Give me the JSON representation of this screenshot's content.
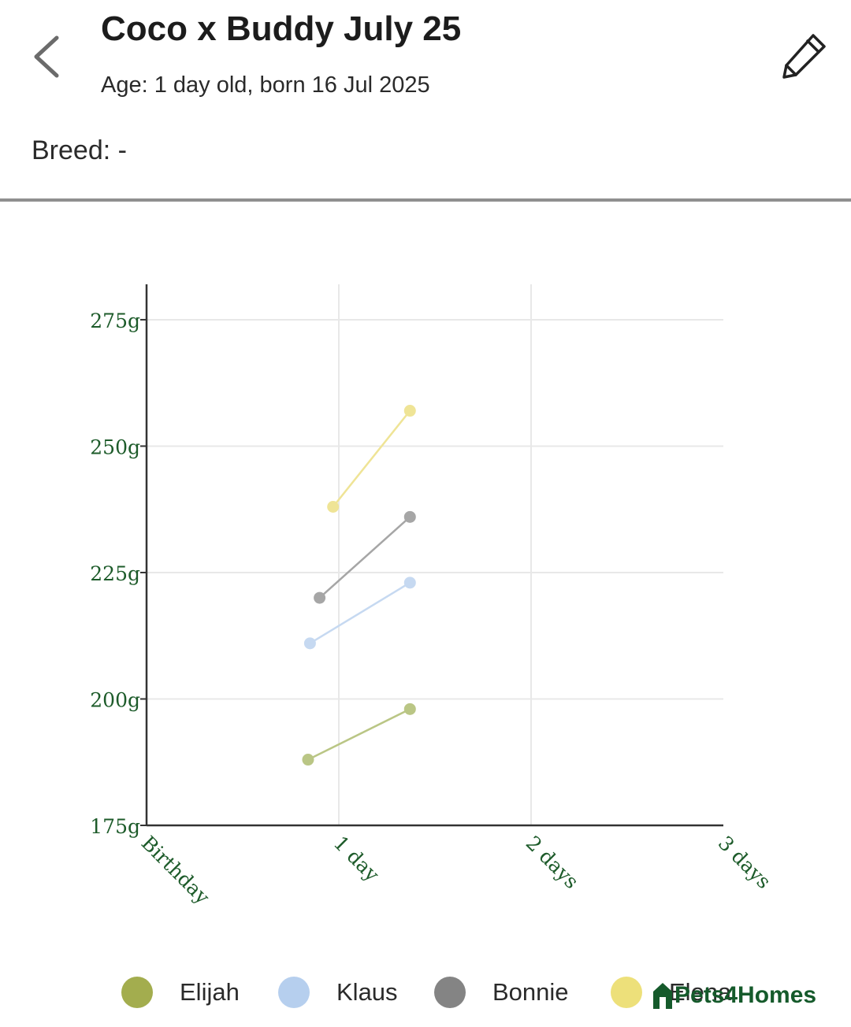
{
  "header": {
    "title": "Coco x Buddy July 25",
    "age_text": "Age: 1 day old, born 16 Jul 2025",
    "back_icon": "chevron-left-icon",
    "edit_icon": "pencil-icon"
  },
  "details": {
    "breed_text": "Breed: -"
  },
  "chart_data": {
    "type": "line",
    "title": "",
    "xlabel": "",
    "ylabel": "",
    "x_tick_labels": [
      "Birthday",
      "1 day",
      "2 days",
      "3 days"
    ],
    "x_ticks": [
      0,
      1,
      2,
      3
    ],
    "y_tick_labels": [
      "175g",
      "200g",
      "225g",
      "250g",
      "275g"
    ],
    "y_ticks": [
      175,
      200,
      225,
      250,
      275
    ],
    "xlim": [
      0,
      3
    ],
    "ylim": [
      175,
      282
    ],
    "grid": true,
    "legend_position": "bottom",
    "series": [
      {
        "name": "Elijah",
        "color": "#a3ad4e",
        "line_color": "#bac685",
        "x": [
          0.84,
          1.37
        ],
        "y": [
          188,
          198
        ]
      },
      {
        "name": "Klaus",
        "color": "#b6cfee",
        "line_color": "#c6d9f1",
        "x": [
          0.85,
          1.37
        ],
        "y": [
          211,
          223
        ]
      },
      {
        "name": "Bonnie",
        "color": "#848484",
        "line_color": "#a6a6a6",
        "x": [
          0.9,
          1.37
        ],
        "y": [
          220,
          236
        ]
      },
      {
        "name": "Elena",
        "color": "#ede07a",
        "line_color": "#efe496",
        "x": [
          0.97,
          1.37
        ],
        "y": [
          238,
          257
        ]
      }
    ]
  },
  "branding": {
    "logo_text": "Pets4Homes",
    "color": "#155a2b"
  }
}
